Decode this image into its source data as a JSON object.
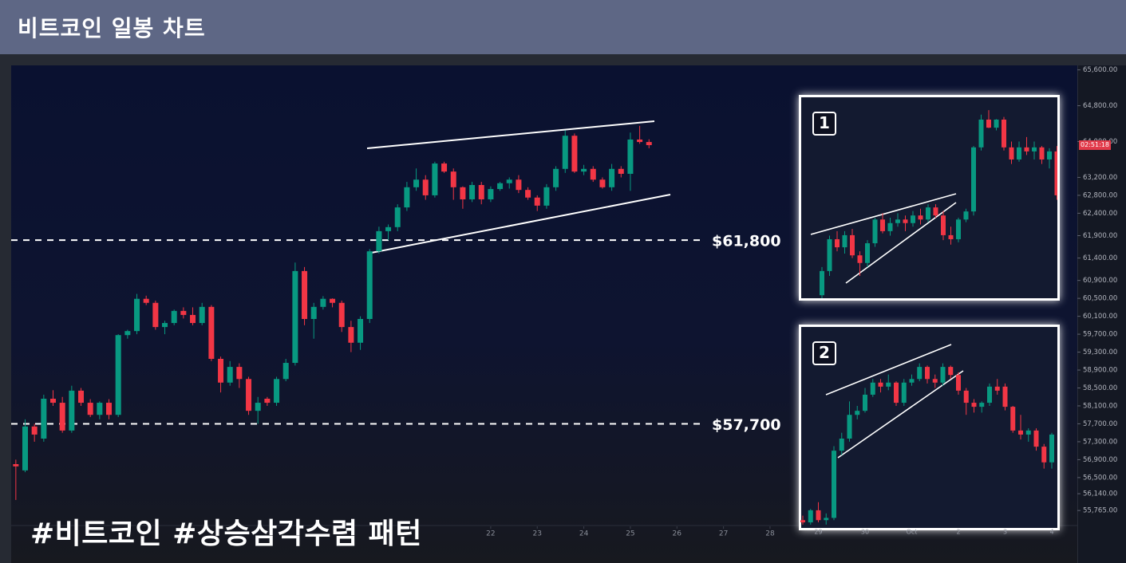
{
  "header": {
    "title": "비트코인 일봉 차트"
  },
  "caption": "#비트코인 #상승삼각수렴 패턴",
  "chart_data": [
    {
      "type": "candlestick",
      "up_color": "#089981",
      "down_color": "#f23645",
      "xlim": [
        11.7,
        34.6
      ],
      "xticks": [
        22,
        23,
        24,
        25,
        26,
        27,
        28
      ],
      "ylim": [
        54700,
        65700
      ],
      "yticks": [
        {
          "value": 65600,
          "label": "65,600.00"
        },
        {
          "value": 64800,
          "label": "64,800.00"
        },
        {
          "value": 64000,
          "label": "64,000.00"
        },
        {
          "value": 63200,
          "label": "63,200.00"
        },
        {
          "value": 62800,
          "label": "62,800.00"
        },
        {
          "value": 62400,
          "label": "62,400.00"
        },
        {
          "value": 61900,
          "label": "61,900.00"
        },
        {
          "value": 61400,
          "label": "61,400.00"
        },
        {
          "value": 60900,
          "label": "60,900.00"
        },
        {
          "value": 60500,
          "label": "60,500.00"
        },
        {
          "value": 60100,
          "label": "60,100.00"
        },
        {
          "value": 59700,
          "label": "59,700.00"
        },
        {
          "value": 59300,
          "label": "59,300.00"
        },
        {
          "value": 58900,
          "label": "58,900.00"
        },
        {
          "value": 58500,
          "label": "58,500.00"
        },
        {
          "value": 58100,
          "label": "58,100.00"
        },
        {
          "value": 57700,
          "label": "57,700.00"
        },
        {
          "value": 57300,
          "label": "57,300.00"
        },
        {
          "value": 56900,
          "label": "56,900.00"
        },
        {
          "value": 56500,
          "label": "56,500.00"
        },
        {
          "value": 56140,
          "label": "56,140.00"
        },
        {
          "value": 55765,
          "label": "55,765.00"
        }
      ],
      "price_tag": "02:51:18",
      "annotations": [
        {
          "value": 61800,
          "label": "$61,800"
        },
        {
          "value": 57700,
          "label": "$57,700"
        }
      ],
      "x": [
        11.8,
        12,
        12.2,
        12.4,
        12.6,
        12.8,
        13,
        13.2,
        13.4,
        13.6,
        13.8,
        14,
        14.2,
        14.4,
        14.6,
        14.8,
        15,
        15.2,
        15.4,
        15.6,
        15.8,
        16,
        16.2,
        16.4,
        16.6,
        16.8,
        17,
        17.2,
        17.4,
        17.6,
        17.8,
        18,
        18.2,
        18.4,
        18.6,
        18.8,
        19,
        19.2,
        19.4,
        19.6,
        19.8,
        20,
        20.2,
        20.4,
        20.6,
        20.8,
        21,
        21.2,
        21.4,
        21.6,
        21.8,
        22,
        22.2,
        22.4,
        22.6,
        22.8,
        23,
        23.2,
        23.4,
        23.6,
        23.8,
        24,
        24.2,
        24.4,
        24.6,
        24.8,
        25,
        25.2,
        25.4
      ],
      "candles": [
        [
          56800,
          56900,
          56000,
          56750
        ],
        [
          56660,
          57800,
          56620,
          57640
        ],
        [
          57640,
          57700,
          57300,
          57460
        ],
        [
          57370,
          58350,
          57300,
          58260
        ],
        [
          58260,
          58450,
          58100,
          58170
        ],
        [
          58170,
          58300,
          57500,
          57550
        ],
        [
          57550,
          58550,
          57500,
          58440
        ],
        [
          58440,
          58500,
          58100,
          58170
        ],
        [
          58170,
          58250,
          57850,
          57900
        ],
        [
          57900,
          58200,
          57800,
          58170
        ],
        [
          58170,
          58250,
          57800,
          57900
        ],
        [
          57900,
          59700,
          57850,
          59680
        ],
        [
          59680,
          59800,
          59600,
          59770
        ],
        [
          59770,
          60600,
          59700,
          60490
        ],
        [
          60490,
          60560,
          60350,
          60400
        ],
        [
          60400,
          60450,
          59800,
          59860
        ],
        [
          59860,
          60000,
          59700,
          59950
        ],
        [
          59950,
          60250,
          59900,
          60220
        ],
        [
          60220,
          60300,
          60050,
          60130
        ],
        [
          60130,
          60300,
          59900,
          59950
        ],
        [
          59950,
          60400,
          59900,
          60310
        ],
        [
          60310,
          60350,
          59100,
          59150
        ],
        [
          59150,
          59200,
          58400,
          58620
        ],
        [
          58620,
          59100,
          58550,
          58970
        ],
        [
          58970,
          59050,
          58500,
          58700
        ],
        [
          58700,
          58750,
          57900,
          57990
        ],
        [
          57990,
          58300,
          57700,
          58170
        ],
        [
          58260,
          58300,
          58100,
          58170
        ],
        [
          58170,
          58750,
          58100,
          58700
        ],
        [
          58700,
          59150,
          58650,
          59060
        ],
        [
          59060,
          61300,
          59000,
          61110
        ],
        [
          61110,
          61200,
          59900,
          60040
        ],
        [
          60040,
          60400,
          59600,
          60310
        ],
        [
          60310,
          60550,
          60250,
          60490
        ],
        [
          60490,
          60500,
          60300,
          60400
        ],
        [
          60400,
          60450,
          59750,
          59860
        ],
        [
          59860,
          60000,
          59300,
          59510
        ],
        [
          59510,
          60100,
          59350,
          60040
        ],
        [
          60040,
          61600,
          59950,
          61550
        ],
        [
          61550,
          62100,
          61500,
          62000
        ],
        [
          62000,
          62150,
          61800,
          62090
        ],
        [
          62090,
          62600,
          62000,
          62530
        ],
        [
          62530,
          63100,
          62450,
          62980
        ],
        [
          62980,
          63400,
          62900,
          63150
        ],
        [
          63150,
          63250,
          62700,
          62800
        ],
        [
          62800,
          63550,
          62750,
          63510
        ],
        [
          63510,
          63550,
          63300,
          63330
        ],
        [
          63330,
          63400,
          62700,
          62980
        ],
        [
          62980,
          63000,
          62500,
          62710
        ],
        [
          62710,
          63100,
          62650,
          63030
        ],
        [
          63030,
          63100,
          62600,
          62710
        ],
        [
          62710,
          63000,
          62650,
          62940
        ],
        [
          62940,
          63100,
          62900,
          63070
        ],
        [
          63070,
          63200,
          62950,
          63150
        ],
        [
          63150,
          63250,
          62850,
          62920
        ],
        [
          62920,
          62980,
          62700,
          62750
        ],
        [
          62750,
          62800,
          62450,
          62570
        ],
        [
          62570,
          63050,
          62500,
          62980
        ],
        [
          62980,
          63450,
          62900,
          63390
        ],
        [
          63390,
          64250,
          63300,
          64130
        ],
        [
          64130,
          64180,
          63300,
          63330
        ],
        [
          63330,
          63480,
          63250,
          63390
        ],
        [
          63390,
          63450,
          63100,
          63150
        ],
        [
          63150,
          63200,
          62950,
          62980
        ],
        [
          62980,
          63500,
          62900,
          63390
        ],
        [
          63390,
          63450,
          63200,
          63280
        ],
        [
          63280,
          64200,
          62900,
          64045
        ],
        [
          64045,
          64350,
          63950,
          63990
        ],
        [
          63990,
          64050,
          63850,
          63920
        ]
      ]
    },
    {
      "type": "candlestick",
      "badge": "1",
      "up_color": "#089981",
      "down_color": "#f23645",
      "ylim": [
        54700,
        65700
      ],
      "candles": [
        [
          60570,
          61200,
          60500,
          61110
        ],
        [
          61110,
          61900,
          61000,
          61820
        ],
        [
          61820,
          62000,
          61550,
          61640
        ],
        [
          61640,
          62000,
          61500,
          61910
        ],
        [
          61910,
          62050,
          61400,
          61460
        ],
        [
          61460,
          61550,
          61000,
          61290
        ],
        [
          61290,
          61800,
          61200,
          61730
        ],
        [
          61730,
          62300,
          61650,
          62260
        ],
        [
          62260,
          62400,
          61950,
          62000
        ],
        [
          62000,
          62300,
          61900,
          62180
        ],
        [
          62180,
          62400,
          62100,
          62260
        ],
        [
          62260,
          62350,
          62000,
          62180
        ],
        [
          62180,
          62450,
          62100,
          62350
        ],
        [
          62350,
          62500,
          62150,
          62260
        ],
        [
          62260,
          62600,
          62200,
          62530
        ],
        [
          62530,
          62600,
          62300,
          62350
        ],
        [
          62350,
          62450,
          61800,
          61910
        ],
        [
          61910,
          62100,
          61700,
          61820
        ],
        [
          61820,
          62300,
          61750,
          62260
        ],
        [
          62260,
          62500,
          62200,
          62440
        ],
        [
          62440,
          63900,
          62350,
          63870
        ],
        [
          63870,
          64600,
          63800,
          64490
        ],
        [
          64490,
          64700,
          64300,
          64310
        ],
        [
          64310,
          64500,
          64250,
          64490
        ],
        [
          64490,
          64550,
          63800,
          63870
        ],
        [
          63870,
          64000,
          63500,
          63600
        ],
        [
          63600,
          64000,
          63550,
          63870
        ],
        [
          63870,
          64100,
          63700,
          63780
        ],
        [
          63780,
          64000,
          63600,
          63870
        ],
        [
          63870,
          63900,
          63500,
          63600
        ],
        [
          63600,
          63850,
          63400,
          63780
        ],
        [
          63780,
          63900,
          62700,
          62800
        ]
      ]
    },
    {
      "type": "candlestick",
      "badge": "2",
      "up_color": "#089981",
      "down_color": "#f23645",
      "ylim": [
        54700,
        65700
      ],
      "categories": [
        null,
        null,
        "29",
        null,
        null,
        null,
        null,
        null,
        "30",
        null,
        null,
        null,
        null,
        null,
        "Oct",
        null,
        null,
        null,
        null,
        null,
        "2",
        null,
        null,
        null,
        null,
        null,
        "3",
        null,
        null,
        null,
        null,
        null,
        "4"
      ],
      "candles": [
        [
          55550,
          55650,
          55450,
          55500
        ],
        [
          55500,
          55800,
          55450,
          55770
        ],
        [
          55770,
          55950,
          55500,
          55550
        ],
        [
          55550,
          55700,
          55450,
          55600
        ],
        [
          55600,
          57200,
          55550,
          57100
        ],
        [
          57100,
          57500,
          57000,
          57370
        ],
        [
          57370,
          58200,
          57300,
          57900
        ],
        [
          57900,
          58100,
          57800,
          57990
        ],
        [
          57990,
          58500,
          57950,
          58350
        ],
        [
          58350,
          58700,
          58300,
          58620
        ],
        [
          58620,
          58700,
          58400,
          58530
        ],
        [
          58530,
          58800,
          58450,
          58620
        ],
        [
          58620,
          58650,
          58100,
          58170
        ],
        [
          58170,
          58700,
          58100,
          58620
        ],
        [
          58620,
          58800,
          58550,
          58700
        ],
        [
          58700,
          59050,
          58650,
          58970
        ],
        [
          58970,
          59000,
          58600,
          58700
        ],
        [
          58700,
          58800,
          58500,
          58620
        ],
        [
          58620,
          59050,
          58550,
          58970
        ],
        [
          58970,
          59000,
          58700,
          58790
        ],
        [
          58790,
          58850,
          58350,
          58440
        ],
        [
          58440,
          58500,
          57900,
          58170
        ],
        [
          58170,
          58250,
          57950,
          58080
        ],
        [
          58080,
          58200,
          57950,
          58170
        ],
        [
          58170,
          58600,
          58100,
          58530
        ],
        [
          58530,
          58700,
          58350,
          58440
        ],
        [
          58530,
          58600,
          58000,
          58080
        ],
        [
          58080,
          58100,
          57500,
          57550
        ],
        [
          57550,
          57900,
          57350,
          57460
        ],
        [
          57460,
          57600,
          57300,
          57550
        ],
        [
          57550,
          57600,
          57100,
          57190
        ],
        [
          57190,
          57250,
          56700,
          56840
        ],
        [
          56840,
          57500,
          56700,
          57460
        ]
      ]
    }
  ]
}
